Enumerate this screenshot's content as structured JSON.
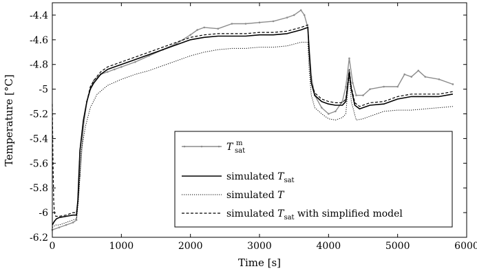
{
  "chart_data": {
    "type": "line",
    "xlabel": "Time [s]",
    "ylabel": "Temperature [°C]",
    "xlim": [
      0,
      6000
    ],
    "ylim": [
      -6.2,
      -4.3
    ],
    "xticks": [
      0,
      1000,
      2000,
      3000,
      4000,
      5000,
      6000
    ],
    "xtick_labels": [
      "0",
      "1000",
      "2000",
      "3000",
      "4000",
      "5000",
      "6000"
    ],
    "yticks": [
      -6.2,
      -6.0,
      -5.8,
      -5.6,
      -5.4,
      -5.2,
      -5.0,
      -4.8,
      -4.6,
      -4.4
    ],
    "ytick_labels": [
      "-6.2",
      "-6",
      "-5.8",
      "-5.6",
      "-5.4",
      "-5.2",
      "-5",
      "-4.8",
      "-4.6",
      "-4.4"
    ],
    "grid": false,
    "legend_position": "bottom-right",
    "series": [
      {
        "name": "T_sat^m",
        "legend_main": "T",
        "legend_sup": "m",
        "legend_sub": "sat",
        "color": "#8c8c8c",
        "style": "solid-markers",
        "x": [
          0,
          100,
          200,
          300,
          350,
          400,
          450,
          500,
          550,
          600,
          700,
          800,
          900,
          1000,
          1200,
          1400,
          1600,
          1800,
          2000,
          2100,
          2200,
          2400,
          2600,
          2800,
          3000,
          3200,
          3400,
          3500,
          3600,
          3650,
          3700,
          3750,
          3800,
          3900,
          4000,
          4100,
          4200,
          4250,
          4300,
          4350,
          4400,
          4500,
          4600,
          4800,
          5000,
          5100,
          5200,
          5300,
          5400,
          5600,
          5800
        ],
        "y": [
          -6.14,
          -6.12,
          -6.1,
          -6.08,
          -6.06,
          -5.7,
          -5.3,
          -5.1,
          -5.0,
          -4.93,
          -4.88,
          -4.86,
          -4.84,
          -4.82,
          -4.78,
          -4.73,
          -4.68,
          -4.63,
          -4.56,
          -4.52,
          -4.5,
          -4.51,
          -4.47,
          -4.47,
          -4.46,
          -4.45,
          -4.42,
          -4.4,
          -4.36,
          -4.4,
          -4.5,
          -4.9,
          -5.05,
          -5.15,
          -5.2,
          -5.18,
          -5.1,
          -4.98,
          -4.75,
          -4.95,
          -5.05,
          -5.05,
          -5.0,
          -4.98,
          -4.98,
          -4.88,
          -4.9,
          -4.85,
          -4.9,
          -4.92,
          -4.96
        ]
      },
      {
        "name": "simulated T_sat",
        "legend_main": "simulated T",
        "legend_sup": "",
        "legend_sub": "sat",
        "color": "#000000",
        "style": "solid",
        "x": [
          0,
          30,
          60,
          100,
          200,
          300,
          350,
          370,
          400,
          450,
          500,
          550,
          600,
          700,
          800,
          900,
          1000,
          1200,
          1400,
          1600,
          1800,
          2000,
          2200,
          2400,
          2600,
          2800,
          3000,
          3200,
          3400,
          3600,
          3700,
          3720,
          3750,
          3800,
          3900,
          4000,
          4100,
          4200,
          4250,
          4300,
          4330,
          4380,
          4450,
          4600,
          4800,
          5000,
          5200,
          5400,
          5600,
          5800
        ],
        "y": [
          -6.1,
          -6.07,
          -6.05,
          -6.04,
          -6.03,
          -6.02,
          -6.02,
          -5.9,
          -5.5,
          -5.25,
          -5.1,
          -5.0,
          -4.95,
          -4.88,
          -4.84,
          -4.82,
          -4.8,
          -4.76,
          -4.72,
          -4.68,
          -4.64,
          -4.6,
          -4.58,
          -4.57,
          -4.57,
          -4.57,
          -4.56,
          -4.56,
          -4.55,
          -4.52,
          -4.5,
          -4.7,
          -4.95,
          -5.05,
          -5.1,
          -5.12,
          -5.13,
          -5.13,
          -5.1,
          -4.86,
          -5.0,
          -5.13,
          -5.16,
          -5.13,
          -5.12,
          -5.08,
          -5.06,
          -5.06,
          -5.06,
          -5.04
        ]
      },
      {
        "name": "simulated T",
        "legend_main": "simulated T",
        "legend_sup": "",
        "legend_sub": "",
        "color": "#000000",
        "style": "dotted",
        "x": [
          0,
          50,
          100,
          200,
          300,
          350,
          380,
          420,
          480,
          550,
          650,
          800,
          1000,
          1200,
          1400,
          1600,
          1800,
          2000,
          2200,
          2400,
          2600,
          2800,
          3000,
          3200,
          3400,
          3600,
          3700,
          3720,
          3750,
          3800,
          3900,
          4000,
          4100,
          4200,
          4250,
          4300,
          4330,
          4400,
          4500,
          4600,
          4800,
          5000,
          5200,
          5400,
          5600,
          5800
        ],
        "y": [
          -6.12,
          -6.1,
          -6.1,
          -6.08,
          -6.06,
          -6.05,
          -5.9,
          -5.5,
          -5.3,
          -5.15,
          -5.04,
          -4.97,
          -4.92,
          -4.88,
          -4.85,
          -4.81,
          -4.77,
          -4.73,
          -4.7,
          -4.68,
          -4.67,
          -4.67,
          -4.66,
          -4.66,
          -4.65,
          -4.62,
          -4.62,
          -4.85,
          -5.05,
          -5.15,
          -5.2,
          -5.24,
          -5.25,
          -5.23,
          -5.2,
          -4.88,
          -5.1,
          -5.25,
          -5.24,
          -5.22,
          -5.18,
          -5.17,
          -5.17,
          -5.16,
          -5.15,
          -5.14
        ]
      },
      {
        "name": "simulated T_sat with simplified model",
        "legend_main": "simulated T",
        "legend_sup": "",
        "legend_sub": "sat",
        "legend_suffix": " with simplified model",
        "color": "#000000",
        "style": "dashed",
        "x": [
          0,
          10,
          20,
          30,
          50,
          100,
          200,
          300,
          350,
          370,
          400,
          450,
          500,
          550,
          600,
          700,
          800,
          900,
          1000,
          1200,
          1400,
          1600,
          1800,
          2000,
          2200,
          2400,
          2600,
          2800,
          3000,
          3200,
          3400,
          3600,
          3700,
          3720,
          3750,
          3800,
          3900,
          4000,
          4100,
          4200,
          4250,
          4300,
          4330,
          4380,
          4450,
          4600,
          4800,
          5000,
          5200,
          5400,
          5600,
          5800
        ],
        "y": [
          -5.12,
          -5.6,
          -5.9,
          -6.0,
          -6.03,
          -6.03,
          -6.02,
          -6.0,
          -6.0,
          -5.9,
          -5.5,
          -5.25,
          -5.1,
          -4.98,
          -4.93,
          -4.86,
          -4.82,
          -4.8,
          -4.78,
          -4.74,
          -4.7,
          -4.66,
          -4.62,
          -4.58,
          -4.56,
          -4.55,
          -4.55,
          -4.55,
          -4.54,
          -4.54,
          -4.53,
          -4.5,
          -4.48,
          -4.7,
          -4.95,
          -5.03,
          -5.08,
          -5.1,
          -5.11,
          -5.11,
          -5.08,
          -4.84,
          -4.98,
          -5.11,
          -5.14,
          -5.11,
          -5.1,
          -5.06,
          -5.04,
          -5.04,
          -5.04,
          -5.02
        ]
      }
    ]
  }
}
